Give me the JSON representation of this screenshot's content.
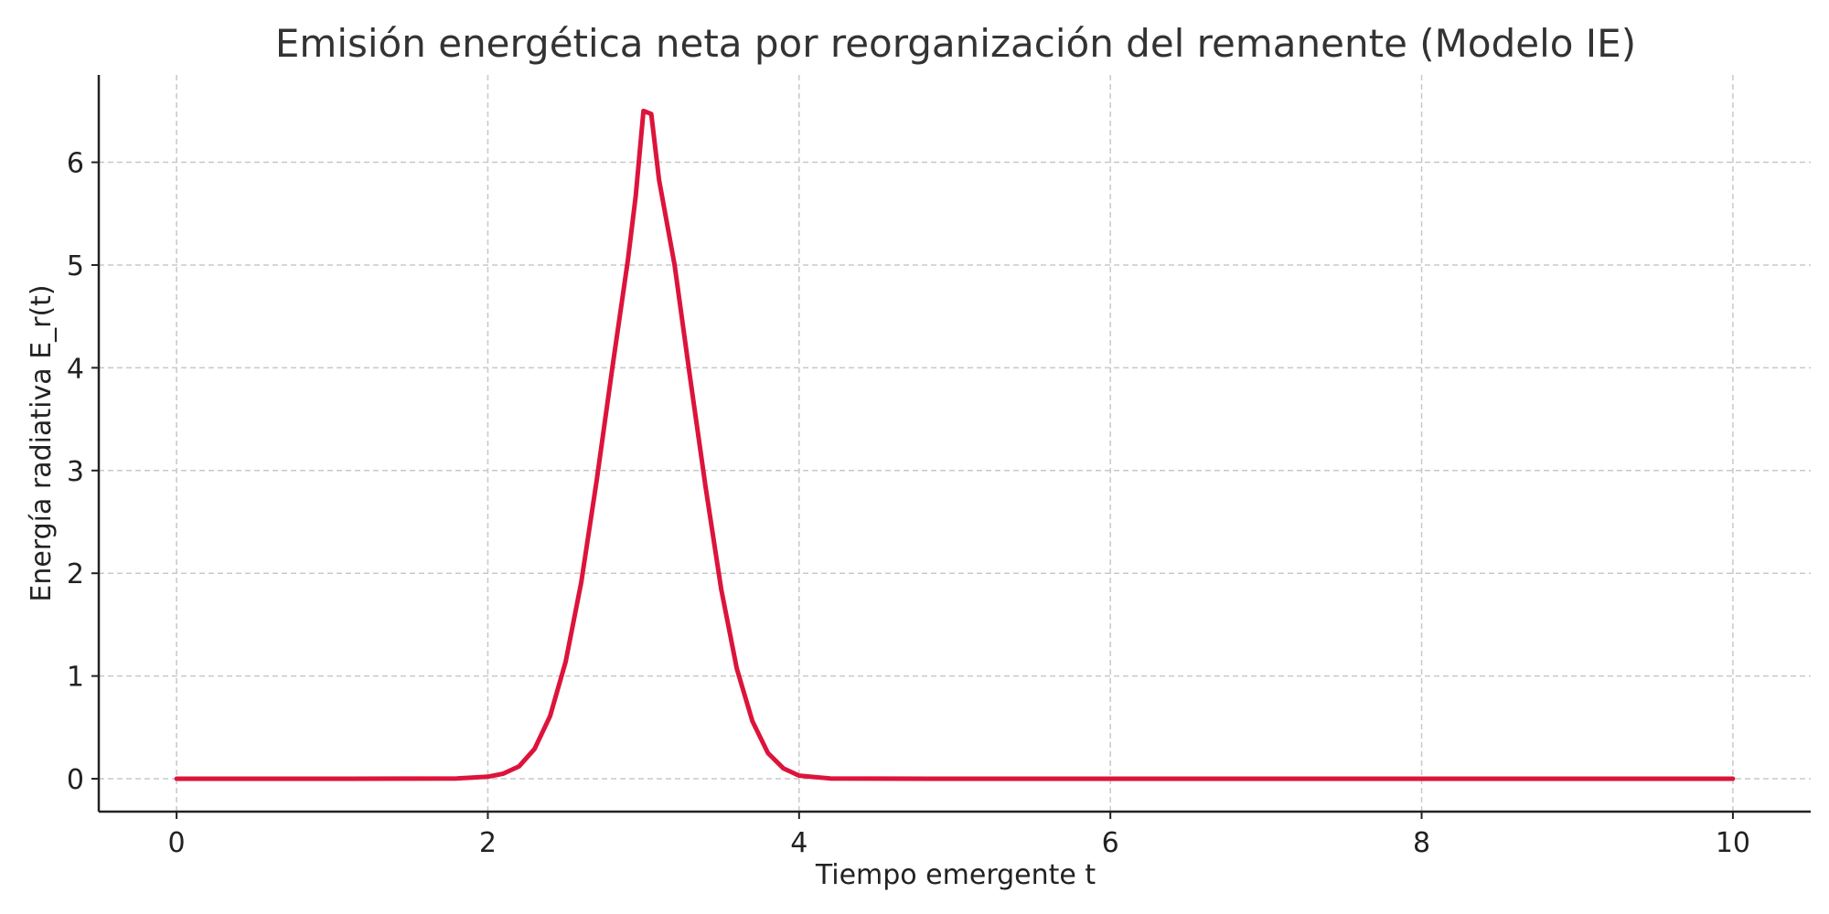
{
  "chart_data": {
    "type": "line",
    "title": "Emisión energética neta por reorganización del remanente (Modelo IE)",
    "xlabel": "Tiempo emergente t",
    "ylabel": "Energía radiativa E_r(t)",
    "xlim": [
      -0.5,
      10.5
    ],
    "ylim": [
      -0.32,
      6.85
    ],
    "xticks": [
      0,
      2,
      4,
      6,
      8,
      10
    ],
    "yticks": [
      0,
      1,
      2,
      3,
      4,
      5,
      6
    ],
    "grid": true,
    "series": [
      {
        "color": "#dc143c",
        "x": [
          0,
          1,
          1.8,
          2.0,
          2.1,
          2.2,
          2.3,
          2.4,
          2.5,
          2.6,
          2.7,
          2.8,
          2.9,
          2.95,
          3.0,
          3.05,
          3.1,
          3.2,
          3.3,
          3.4,
          3.5,
          3.6,
          3.7,
          3.8,
          3.9,
          4.0,
          4.2,
          5,
          6,
          7,
          8,
          9,
          10
        ],
        "y": [
          0,
          0,
          0.003,
          0.02,
          0.05,
          0.12,
          0.29,
          0.61,
          1.14,
          1.91,
          2.91,
          4.0,
          5.05,
          5.67,
          6.5,
          6.47,
          5.83,
          5.0,
          3.9,
          2.83,
          1.84,
          1.07,
          0.56,
          0.25,
          0.1,
          0.03,
          0.003,
          0,
          0,
          0,
          0,
          0,
          0
        ]
      }
    ]
  }
}
